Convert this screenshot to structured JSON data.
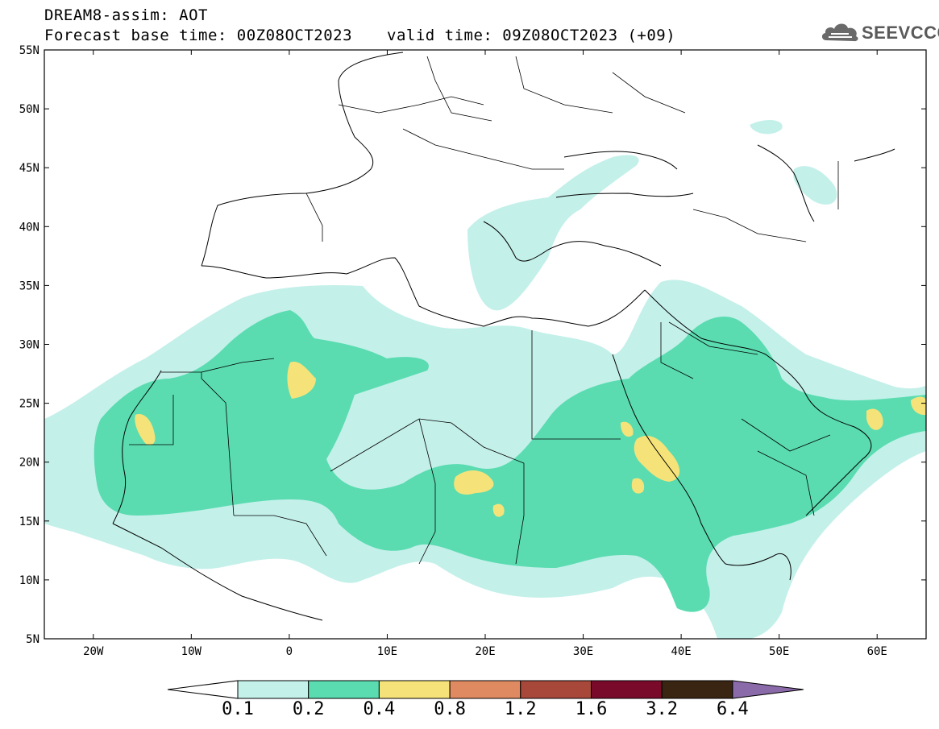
{
  "header": {
    "title": "DREAM8-assim: AOT",
    "base_time": "Forecast base time: 00Z08OCT2023",
    "valid_time": "valid time: 09Z08OCT2023 (+09)"
  },
  "logo": {
    "name": "SEEVCCC",
    "icon": "cloud-icon"
  },
  "map": {
    "variable": "Aerosol optical thickness",
    "lon_range": [
      -25,
      65
    ],
    "lat_range": [
      5,
      55
    ],
    "lat_labels": [
      "55N",
      "50N",
      "45N",
      "40N",
      "35N",
      "30N",
      "25N",
      "20N",
      "15N",
      "10N",
      "5N"
    ],
    "lon_labels": [
      "20W",
      "10W",
      "0",
      "10E",
      "20E",
      "30E",
      "40E",
      "50E",
      "60E"
    ]
  },
  "colorbar": {
    "labels": [
      "0.1",
      "0.2",
      "0.4",
      "0.8",
      "1.2",
      "1.6",
      "3.2",
      "6.4"
    ],
    "colors": [
      "#ffffff",
      "#c4f0ea",
      "#5adcb0",
      "#f5e37a",
      "#e08a62",
      "#a8483a",
      "#7a0a2a",
      "#3a2412",
      "#8a6aa8"
    ]
  }
}
